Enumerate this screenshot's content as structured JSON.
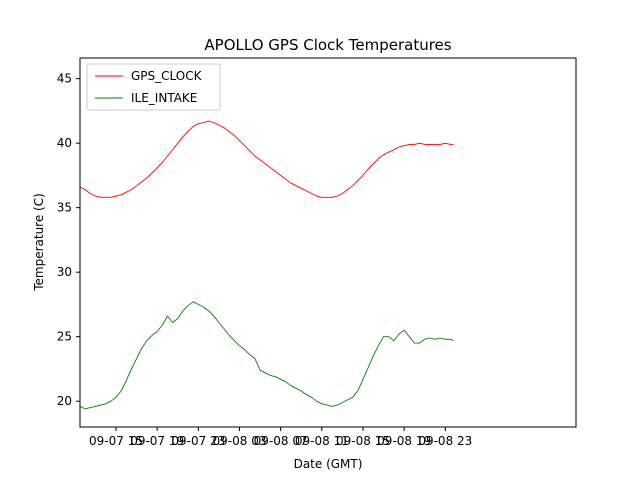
{
  "chart_data": {
    "type": "line",
    "title": "APOLLO GPS Clock Temperatures",
    "xlabel": "Date (GMT)",
    "ylabel": "Temperature (C)",
    "xlim": [
      11.5,
      59.7
    ],
    "ylim": [
      18.0,
      46.6
    ],
    "x_unit": "hours since 2019-09-07 00:00 GMT",
    "grid": false,
    "legend_position": "top-left",
    "x_ticks": [
      {
        "value": 15,
        "label": "09-07 15"
      },
      {
        "value": 19,
        "label": "09-07 19"
      },
      {
        "value": 23,
        "label": "09-07 23"
      },
      {
        "value": 27,
        "label": "09-08 03"
      },
      {
        "value": 31,
        "label": "09-08 07"
      },
      {
        "value": 35,
        "label": "09-08 11"
      },
      {
        "value": 39,
        "label": "09-08 15"
      },
      {
        "value": 43,
        "label": "09-08 19"
      },
      {
        "value": 47,
        "label": "09-08 23"
      }
    ],
    "y_ticks": [
      {
        "value": 20,
        "label": "20"
      },
      {
        "value": 25,
        "label": "25"
      },
      {
        "value": 30,
        "label": "30"
      },
      {
        "value": 35,
        "label": "35"
      },
      {
        "value": 40,
        "label": "40"
      },
      {
        "value": 45,
        "label": "45"
      }
    ],
    "series": [
      {
        "name": "GPS_CLOCK",
        "color": "#ff0000",
        "x": [
          11.5,
          12,
          12.5,
          13,
          13.5,
          14,
          14.5,
          15,
          15.5,
          16,
          16.5,
          17,
          17.5,
          18,
          18.5,
          19,
          19.5,
          20,
          20.5,
          21,
          21.5,
          22,
          22.5,
          23,
          23.5,
          24,
          24.5,
          25,
          25.5,
          26,
          26.5,
          27,
          27.5,
          28,
          28.5,
          29,
          29.5,
          30,
          30.5,
          31,
          31.5,
          32,
          32.5,
          33,
          33.5,
          34,
          34.5,
          35,
          35.5,
          36,
          36.5,
          37,
          37.5,
          38,
          38.5,
          39,
          39.5,
          40,
          40.5,
          41,
          41.5,
          42,
          42.5,
          43,
          43.5,
          44,
          44.5,
          45,
          45.5,
          46,
          46.5,
          47,
          47.5,
          47.8
        ],
        "values": [
          36.6,
          36.4,
          36.1,
          35.9,
          35.8,
          35.8,
          35.8,
          35.9,
          36.0,
          36.2,
          36.4,
          36.7,
          37.0,
          37.3,
          37.7,
          38.1,
          38.5,
          39.0,
          39.5,
          40.0,
          40.5,
          40.9,
          41.3,
          41.5,
          41.6,
          41.7,
          41.6,
          41.4,
          41.2,
          40.9,
          40.6,
          40.2,
          39.8,
          39.4,
          39.0,
          38.7,
          38.4,
          38.1,
          37.8,
          37.5,
          37.2,
          36.9,
          36.7,
          36.5,
          36.3,
          36.1,
          35.9,
          35.8,
          35.8,
          35.8,
          35.9,
          36.1,
          36.4,
          36.7,
          37.1,
          37.5,
          38.0,
          38.4,
          38.8,
          39.1,
          39.3,
          39.5,
          39.7,
          39.8,
          39.9,
          39.9,
          40.0,
          39.9,
          39.9,
          39.9,
          39.9,
          40.0,
          39.9,
          39.9
        ]
      },
      {
        "name": "ILE_INTAKE",
        "color": "#008000",
        "x": [
          11.5,
          12,
          12.5,
          13,
          13.5,
          14,
          14.5,
          15,
          15.5,
          16,
          16.5,
          17,
          17.5,
          18,
          18.5,
          19,
          19.5,
          20,
          20.5,
          21,
          21.5,
          22,
          22.5,
          23,
          23.5,
          24,
          24.5,
          25,
          25.5,
          26,
          26.5,
          27,
          27.5,
          28,
          28.5,
          29,
          29.5,
          30,
          30.5,
          31,
          31.5,
          32,
          32.5,
          33,
          33.5,
          34,
          34.5,
          35,
          35.5,
          36,
          36.5,
          37,
          37.5,
          38,
          38.5,
          39,
          39.5,
          40,
          40.5,
          41,
          41.5,
          42,
          42.5,
          43,
          43.5,
          44,
          44.5,
          45,
          45.5,
          46,
          46.5,
          47,
          47.5,
          47.8
        ],
        "values": [
          19.6,
          19.4,
          19.5,
          19.6,
          19.7,
          19.8,
          20.0,
          20.3,
          20.8,
          21.6,
          22.5,
          23.3,
          24.1,
          24.7,
          25.1,
          25.4,
          25.9,
          26.6,
          26.1,
          26.4,
          27.0,
          27.4,
          27.7,
          27.5,
          27.3,
          27.0,
          26.6,
          26.1,
          25.6,
          25.1,
          24.7,
          24.3,
          24.0,
          23.6,
          23.3,
          22.4,
          22.2,
          22.0,
          21.9,
          21.7,
          21.5,
          21.2,
          21.0,
          20.8,
          20.5,
          20.3,
          20.0,
          19.8,
          19.7,
          19.6,
          19.7,
          19.9,
          20.1,
          20.3,
          20.8,
          21.7,
          22.6,
          23.5,
          24.3,
          25.0,
          25.0,
          24.7,
          25.2,
          25.5,
          25.0,
          24.5,
          24.5,
          24.8,
          24.9,
          24.8,
          24.9,
          24.8,
          24.8,
          24.7
        ]
      }
    ]
  }
}
